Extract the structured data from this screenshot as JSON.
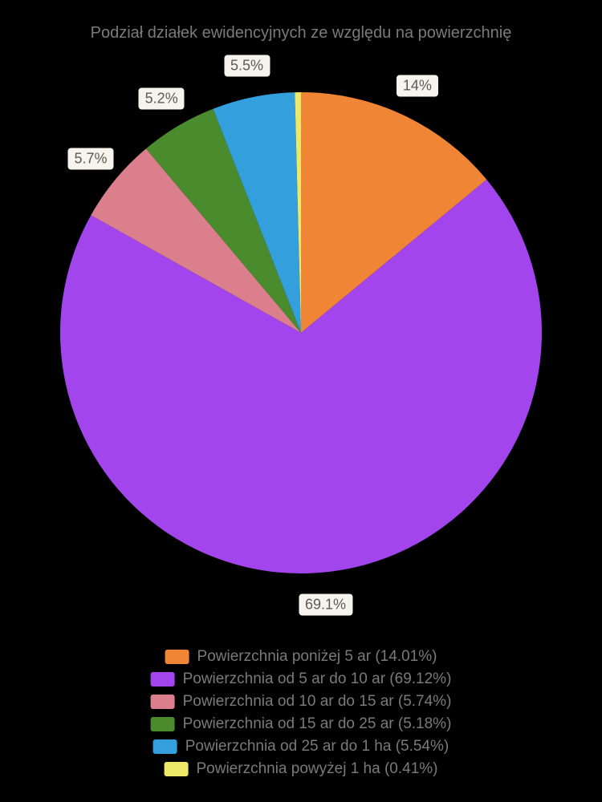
{
  "chart": {
    "type": "pie",
    "title": "Podział działek ewidencyjnych ze względu na powierzchnię",
    "title_color": "#7a7a7a",
    "title_fontsize": 20,
    "background_color": "#000000",
    "pie_radius": 300,
    "start_angle_deg": -90,
    "label_fontsize": 18,
    "label_bg": "#f7f4ed",
    "label_text_color": "#5a5a5a",
    "legend_fontsize": 19,
    "legend_text_color": "#7a7a7a",
    "slices": [
      {
        "label": "Powierzchnia poniżej 5 ar",
        "pct": 14.01,
        "short": "14%",
        "color": "#f08536"
      },
      {
        "label": "Powierzchnia od 5 ar do 10 ar",
        "pct": 69.12,
        "short": "69.1%",
        "color": "#a245ec"
      },
      {
        "label": "Powierzchnia od 10 ar do 15 ar",
        "pct": 5.74,
        "short": "5.7%",
        "color": "#db7f8d"
      },
      {
        "label": "Powierzchnia od 15 ar do 25 ar",
        "pct": 5.18,
        "short": "5.2%",
        "color": "#4a8b2e"
      },
      {
        "label": "Powierzchnia od 25 ar do 1 ha",
        "pct": 5.54,
        "short": "5.5%",
        "color": "#339fdd"
      },
      {
        "label": "Powierzchnia powyżej 1 ha",
        "pct": 0.41,
        "short": "0.4%",
        "color": "#eee868"
      }
    ],
    "label_visibility_min_pct": 0.5,
    "label_offset": 40
  }
}
